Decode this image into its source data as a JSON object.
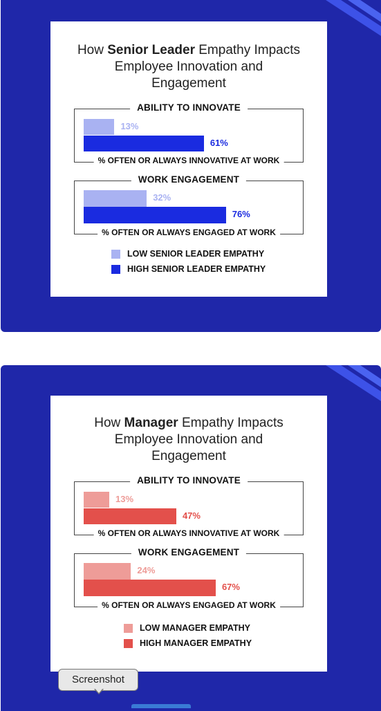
{
  "colors": {
    "panel_bg": "#1f27a9",
    "leader_low": "#a9b2f2",
    "leader_high": "#1a2be0",
    "manager_low": "#ee9c98",
    "manager_high": "#e3504b"
  },
  "tooltip": {
    "label": "Screenshot"
  },
  "chart_data": [
    {
      "type": "bar",
      "orientation": "horizontal",
      "title_parts": [
        "How ",
        "Senior Leader",
        " Empathy Impacts",
        "Employee Innovation and",
        "Engagement"
      ],
      "groups": [
        {
          "label": "ABILITY TO INNOVATE",
          "footer": "% OFTEN OR ALWAYS INNOVATIVE AT WORK",
          "low": 13,
          "high": 61,
          "low_label": "13%",
          "high_label": "61%"
        },
        {
          "label": "WORK ENGAGEMENT",
          "footer": "% OFTEN OR ALWAYS ENGAGED AT WORK",
          "low": 32,
          "high": 76,
          "low_label": "32%",
          "high_label": "76%"
        }
      ],
      "series": [
        {
          "name": "LOW SENIOR LEADER EMPATHY",
          "values": [
            13,
            32
          ]
        },
        {
          "name": "HIGH SENIOR LEADER EMPATHY",
          "values": [
            61,
            76
          ]
        }
      ],
      "xlim": [
        0,
        100
      ]
    },
    {
      "type": "bar",
      "orientation": "horizontal",
      "title_parts": [
        "How ",
        "Manager",
        " Empathy Impacts",
        "Employee Innovation and",
        "Engagement"
      ],
      "groups": [
        {
          "label": "ABILITY TO INNOVATE",
          "footer": "% OFTEN OR ALWAYS INNOVATIVE AT WORK",
          "low": 13,
          "high": 47,
          "low_label": "13%",
          "high_label": "47%"
        },
        {
          "label": "WORK ENGAGEMENT",
          "footer": "% OFTEN OR ALWAYS ENGAGED AT WORK",
          "low": 24,
          "high": 67,
          "low_label": "24%",
          "high_label": "67%"
        }
      ],
      "series": [
        {
          "name": "LOW MANAGER EMPATHY",
          "values": [
            13,
            24
          ]
        },
        {
          "name": "HIGH MANAGER EMPATHY",
          "values": [
            47,
            67
          ]
        }
      ],
      "xlim": [
        0,
        100
      ]
    }
  ]
}
